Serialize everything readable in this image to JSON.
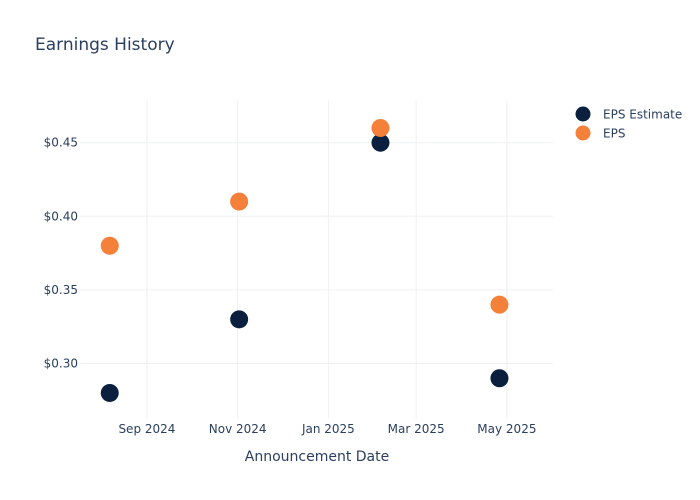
{
  "chart_data": {
    "type": "scatter",
    "title": "Earnings History",
    "xlabel": "Announcement Date",
    "ylabel": "",
    "x_ticks": [
      {
        "date": "2024-09-01",
        "label": "Sep 2024"
      },
      {
        "date": "2024-11-01",
        "label": "Nov 2024"
      },
      {
        "date": "2025-01-01",
        "label": "Jan 2025"
      },
      {
        "date": "2025-03-01",
        "label": "Mar 2025"
      },
      {
        "date": "2025-05-01",
        "label": "May 2025"
      }
    ],
    "y_ticks": [
      {
        "value": 0.3,
        "label": "$0.30"
      },
      {
        "value": 0.35,
        "label": "$0.35"
      },
      {
        "value": 0.4,
        "label": "$0.40"
      },
      {
        "value": 0.45,
        "label": "$0.45"
      }
    ],
    "xlim": [
      "2024-07-18",
      "2025-06-01"
    ],
    "ylim": [
      0.263,
      0.479
    ],
    "grid": true,
    "legend_position": "top-right",
    "x": [
      "2024-08-07",
      "2024-11-02",
      "2025-02-05",
      "2025-04-26"
    ],
    "series": [
      {
        "name": "EPS Estimate",
        "color": "#0b1f3f",
        "values": [
          0.28,
          0.33,
          0.45,
          0.29
        ]
      },
      {
        "name": "EPS",
        "color": "#f5803a",
        "values": [
          0.38,
          0.41,
          0.46,
          0.34
        ]
      }
    ]
  }
}
